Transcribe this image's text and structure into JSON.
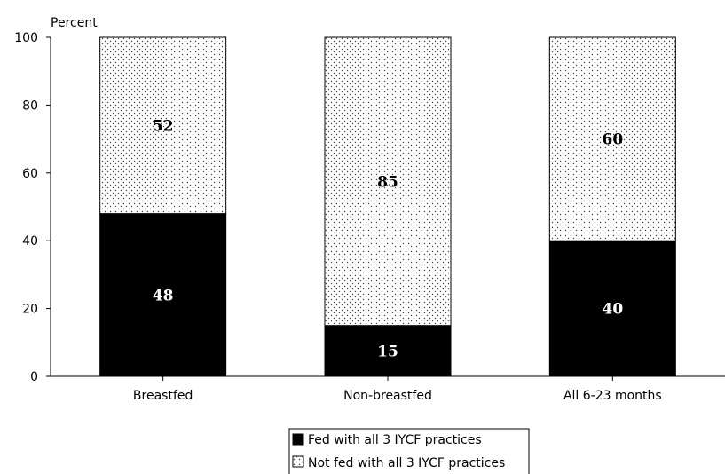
{
  "chart_data": {
    "type": "bar",
    "stacked": true,
    "title": "",
    "xlabel": "",
    "ylabel": "Percent",
    "ylim": [
      0,
      100
    ],
    "yticks": [
      0,
      20,
      40,
      60,
      80,
      100
    ],
    "categories": [
      "Breastfed",
      "Non-breastfed",
      "All 6-23 months"
    ],
    "series": [
      {
        "name": "Fed with all 3 IYCF practices",
        "values": [
          48,
          15,
          40
        ],
        "color": "#000000",
        "pattern": "solid"
      },
      {
        "name": "Not fed with all 3 IYCF practices",
        "values": [
          52,
          85,
          60
        ],
        "color": "#ffffff",
        "pattern": "dotted"
      }
    ],
    "grid": false,
    "legend_position": "bottom"
  }
}
